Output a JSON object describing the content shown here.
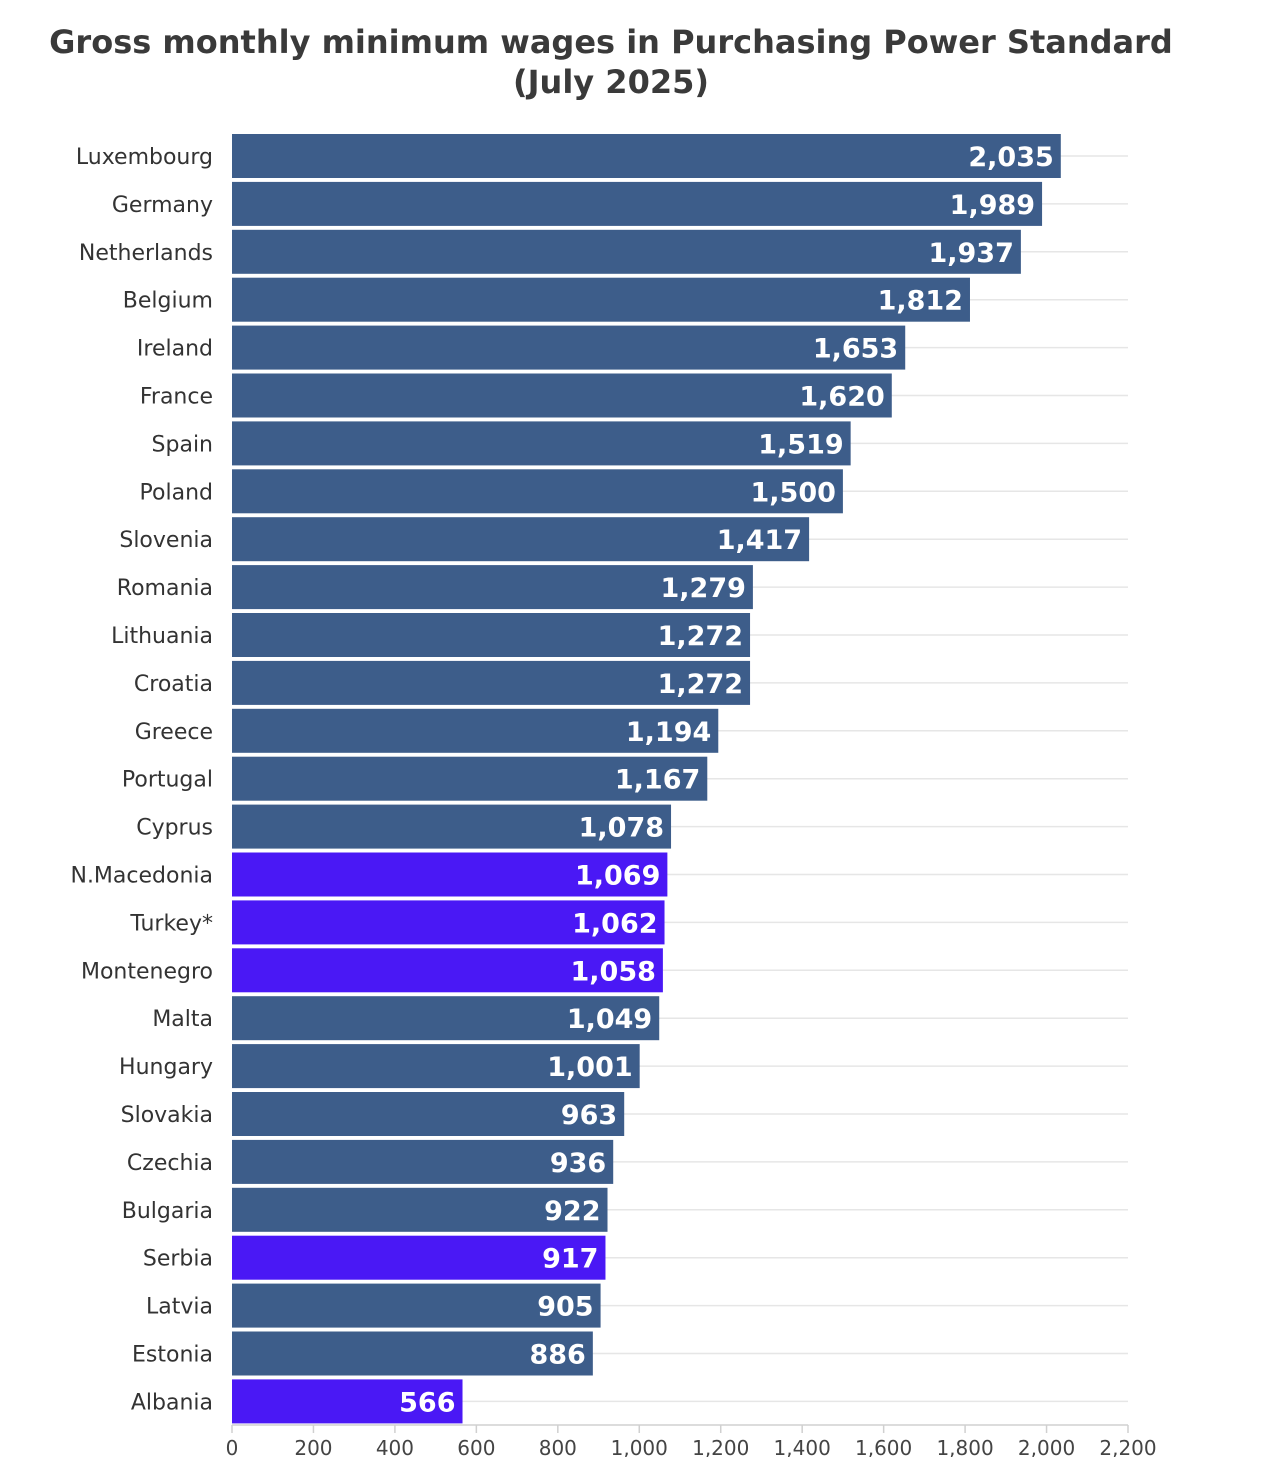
{
  "chart_data": {
    "type": "bar",
    "orientation": "horizontal",
    "title": "Gross monthly minimum wages in Purchasing Power Standard",
    "subtitle": "(July 2025)",
    "xlabel": "",
    "ylabel": "",
    "xlim": [
      0,
      2200
    ],
    "x_ticks": [
      "0",
      "200",
      "400",
      "600",
      "800",
      "1,000",
      "1,200",
      "1,400",
      "1,600",
      "1,800",
      "2,000",
      "2,200"
    ],
    "grid": true,
    "colors": {
      "default": "#3d5d8a",
      "highlight": "#4a18f5"
    },
    "categories": [
      "Luxembourg",
      "Germany",
      "Netherlands",
      "Belgium",
      "Ireland",
      "France",
      "Spain",
      "Poland",
      "Slovenia",
      "Romania",
      "Lithuania",
      "Croatia",
      "Greece",
      "Portugal",
      "Cyprus",
      "N.Macedonia",
      "Turkey*",
      "Montenegro",
      "Malta",
      "Hungary",
      "Slovakia",
      "Czechia",
      "Bulgaria",
      "Serbia",
      "Latvia",
      "Estonia",
      "Albania"
    ],
    "values": [
      2035,
      1989,
      1937,
      1812,
      1653,
      1620,
      1519,
      1500,
      1417,
      1279,
      1272,
      1272,
      1194,
      1167,
      1078,
      1069,
      1062,
      1058,
      1049,
      1001,
      963,
      936,
      922,
      917,
      905,
      886,
      566
    ],
    "value_labels": [
      "2,035",
      "1,989",
      "1,937",
      "1,812",
      "1,653",
      "1,620",
      "1,519",
      "1,500",
      "1,417",
      "1,279",
      "1,272",
      "1,272",
      "1,194",
      "1,167",
      "1,078",
      "1,069",
      "1,062",
      "1,058",
      "1,049",
      "1,001",
      "963",
      "936",
      "922",
      "917",
      "905",
      "886",
      "566"
    ],
    "highlighted": [
      "N.Macedonia",
      "Turkey*",
      "Montenegro",
      "Serbia",
      "Albania"
    ]
  }
}
